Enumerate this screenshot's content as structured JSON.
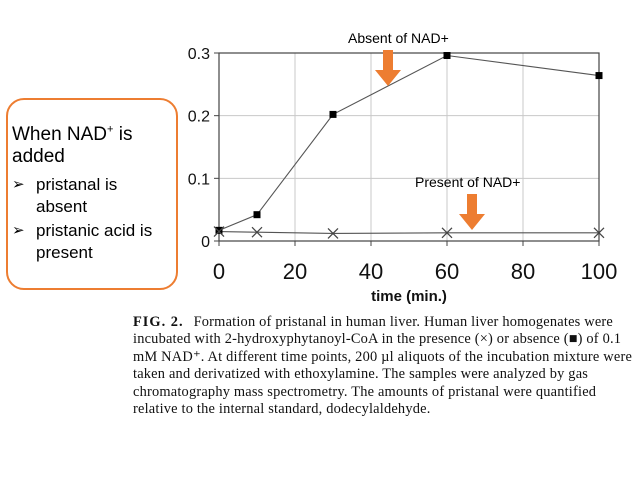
{
  "callout": {
    "heading_pre": "When NAD",
    "heading_sup": "+",
    "heading_post": " is added",
    "items": [
      {
        "bullet": "➢",
        "text": "pristanal is absent"
      },
      {
        "bullet": "➢",
        "text": "pristanic acid is present"
      }
    ]
  },
  "annotations": {
    "absent": "Absent of NAD+",
    "present": "Present of NAD+"
  },
  "caption": {
    "fig_no": "FIG. 2.",
    "text": "Formation of pristanal in human liver. Human liver homogenates were incubated with 2-hydroxyphytanoyl-CoA in the presence (×) or absence (■) of 0.1 mM NAD⁺. At different time points, 200 µl aliquots of the incubation mixture were taken and derivatized with ethoxylamine. The samples were analyzed by gas chromatography mass spectrometry. The amounts of pristanal were quantified relative to the internal standard, dodecylaldehyde."
  },
  "colors": {
    "arrow": "#ed7d31",
    "callout_border": "#ed7d31",
    "line": "#555555"
  },
  "chart_data": {
    "type": "line",
    "xlabel": "time (min.)",
    "ylabel": "",
    "xlim": [
      0,
      100
    ],
    "ylim": [
      0,
      0.3
    ],
    "x_ticks": [
      0,
      20,
      40,
      60,
      80,
      100
    ],
    "y_ticks": [
      0,
      0.1,
      0.2,
      0.3
    ],
    "x_tick_labels": [
      "0",
      "20",
      "40",
      "60",
      "80",
      "100"
    ],
    "y_tick_labels": [
      "0",
      "0.1",
      "0.2",
      "0.3"
    ],
    "grid": true,
    "series": [
      {
        "name": "absence of NAD+",
        "marker": "square",
        "x": [
          0,
          10,
          30,
          60,
          100
        ],
        "y": [
          0.017,
          0.042,
          0.202,
          0.296,
          0.264
        ]
      },
      {
        "name": "presence of NAD+",
        "marker": "cross",
        "x": [
          0,
          10,
          30,
          60,
          100
        ],
        "y": [
          0.015,
          0.014,
          0.012,
          0.013,
          0.013
        ]
      }
    ]
  }
}
